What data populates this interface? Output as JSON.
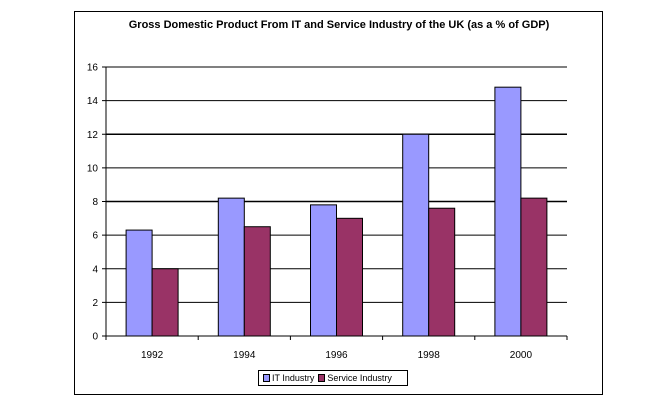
{
  "chart_data": {
    "type": "bar",
    "title": "Gross Domestic Product From IT and Service Industry of the UK (as a % of GDP)",
    "categories": [
      "1992",
      "1994",
      "1996",
      "1998",
      "2000"
    ],
    "series": [
      {
        "name": "IT Industry",
        "values": [
          6.3,
          8.2,
          7.8,
          12.0,
          14.8
        ],
        "color": "#9999FF"
      },
      {
        "name": "Service Industry",
        "values": [
          4.0,
          6.5,
          7.0,
          7.6,
          8.2
        ],
        "color": "#993366"
      }
    ],
    "ylim": [
      0,
      16
    ],
    "yticks": [
      "0",
      "2",
      "4",
      "6",
      "8",
      "10",
      "12",
      "14",
      "16"
    ],
    "xlabel": "",
    "ylabel": "",
    "grid": true,
    "legend_position": "bottom"
  }
}
